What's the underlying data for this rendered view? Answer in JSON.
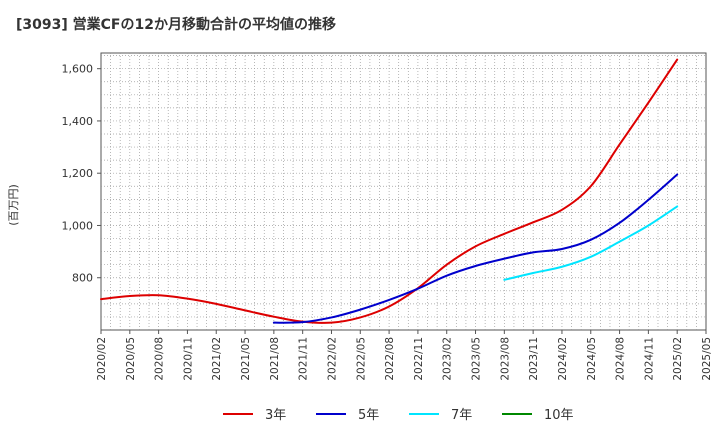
{
  "chart_data": {
    "type": "line",
    "title": "[3093]  営業CFの12か月移動合計の平均値の推移",
    "ylabel": "(百万円)",
    "xlabel": "",
    "ylim": [
      600,
      1660
    ],
    "yticks": [
      800,
      1000,
      1200,
      1400,
      1600
    ],
    "ytick_labels": [
      "800",
      "1,000",
      "1,200",
      "1,400",
      "1,600"
    ],
    "xticks": [
      "2020/02",
      "2020/05",
      "2020/08",
      "2020/11",
      "2021/02",
      "2021/05",
      "2021/08",
      "2021/11",
      "2022/02",
      "2022/05",
      "2022/08",
      "2022/11",
      "2023/02",
      "2023/05",
      "2023/08",
      "2023/11",
      "2024/02",
      "2024/05",
      "2024/08",
      "2024/11",
      "2025/02",
      "2025/05"
    ],
    "grid": true,
    "legend_position": "bottom",
    "series": [
      {
        "name": "3年",
        "color": "#dd0000",
        "points": [
          [
            "2020/02",
            718
          ],
          [
            "2020/05",
            730
          ],
          [
            "2020/08",
            733
          ],
          [
            "2020/11",
            720
          ],
          [
            "2021/02",
            700
          ],
          [
            "2021/05",
            675
          ],
          [
            "2021/08",
            651
          ],
          [
            "2021/11",
            632
          ],
          [
            "2022/02",
            628
          ],
          [
            "2022/05",
            648
          ],
          [
            "2022/08",
            690
          ],
          [
            "2022/11",
            760
          ],
          [
            "2023/02",
            850
          ],
          [
            "2023/05",
            920
          ],
          [
            "2023/08",
            968
          ],
          [
            "2023/11",
            1012
          ],
          [
            "2024/02",
            1060
          ],
          [
            "2024/05",
            1150
          ],
          [
            "2024/08",
            1310
          ],
          [
            "2024/11",
            1470
          ],
          [
            "2025/02",
            1635
          ]
        ]
      },
      {
        "name": "5年",
        "color": "#0000cc",
        "points": [
          [
            "2021/08",
            628
          ],
          [
            "2021/11",
            630
          ],
          [
            "2022/02",
            648
          ],
          [
            "2022/05",
            678
          ],
          [
            "2022/08",
            715
          ],
          [
            "2022/11",
            758
          ],
          [
            "2023/02",
            808
          ],
          [
            "2023/05",
            845
          ],
          [
            "2023/08",
            873
          ],
          [
            "2023/11",
            897
          ],
          [
            "2024/02",
            910
          ],
          [
            "2024/05",
            945
          ],
          [
            "2024/08",
            1010
          ],
          [
            "2024/11",
            1098
          ],
          [
            "2025/02",
            1195
          ]
        ]
      },
      {
        "name": "7年",
        "color": "#00e5ff",
        "points": [
          [
            "2023/08",
            792
          ],
          [
            "2023/11",
            818
          ],
          [
            "2024/02",
            842
          ],
          [
            "2024/05",
            880
          ],
          [
            "2024/08",
            938
          ],
          [
            "2024/11",
            1000
          ],
          [
            "2025/02",
            1073
          ]
        ]
      },
      {
        "name": "10年",
        "color": "#008800",
        "points": []
      }
    ]
  }
}
